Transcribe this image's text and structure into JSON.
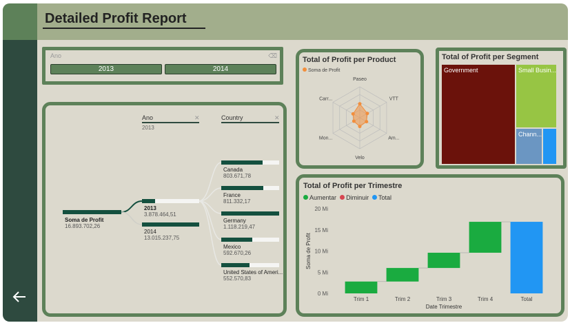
{
  "header": {
    "title": "Detailed Profit Report"
  },
  "slicer": {
    "label": "Ano",
    "options": [
      "2013",
      "2014"
    ]
  },
  "decomposition": {
    "levels": [
      "Ano",
      "Country"
    ],
    "level_subtitle": "2013",
    "root": {
      "label": "Soma de Profit",
      "value": "16.893.702,26"
    },
    "years": [
      {
        "label": "2013",
        "value": "3.878.464,51",
        "selected": true,
        "fill": 0.23
      },
      {
        "label": "2014",
        "value": "13.015.237,75",
        "selected": false,
        "fill": 0.77
      }
    ],
    "countries": [
      {
        "label": "Canada",
        "value": "803.671,78",
        "fill": 0.72
      },
      {
        "label": "France",
        "value": "811.332,17",
        "fill": 0.73
      },
      {
        "label": "Germany",
        "value": "1.118.219,47",
        "fill": 1.0
      },
      {
        "label": "Mexico",
        "value": "592.670,26",
        "fill": 0.53
      },
      {
        "label": "United States of Ameri...",
        "value": "552.570,83",
        "fill": 0.49
      }
    ],
    "close_icon": "close-icon"
  },
  "radar": {
    "title": "Total of Profit per Product",
    "legend": "Soma de Profit",
    "color": "#f28e3c",
    "chart_data": {
      "type": "radar",
      "categories": [
        "Paseo",
        "VTT",
        "Am...",
        "Velo",
        "Mon...",
        "Carr..."
      ],
      "values": [
        0.45,
        0.28,
        0.25,
        0.28,
        0.22,
        0.25
      ]
    }
  },
  "treemap": {
    "title": "Total of Profit per Segment",
    "tiles": [
      {
        "label": "Government",
        "color": "#6b120b"
      },
      {
        "label": "Small Busin...",
        "color": "#97c544"
      },
      {
        "label": "Chann...",
        "color": "#6b96c2"
      },
      {
        "label": "",
        "color": "#2196f3"
      }
    ]
  },
  "waterfall": {
    "title": "Total of Profit per Trimestre",
    "legend": [
      {
        "label": "Aumentar",
        "color": "#1aab40"
      },
      {
        "label": "Diminuir",
        "color": "#d64550"
      },
      {
        "label": "Total",
        "color": "#2196f3"
      }
    ],
    "chart_data": {
      "type": "waterfall",
      "categories": [
        "Trim 1",
        "Trim 2",
        "Trim 3",
        "Trim 4",
        "Total"
      ],
      "deltas": [
        2.8,
        3.2,
        3.6,
        7.3
      ],
      "total": 16.9,
      "ylim": [
        0,
        20
      ],
      "yticks": [
        "0 Mi",
        "5 Mi",
        "10 Mi",
        "15 Mi",
        "20 Mi"
      ],
      "xlabel": "Date Trimestre",
      "ylabel": "Soma de Profit"
    }
  }
}
